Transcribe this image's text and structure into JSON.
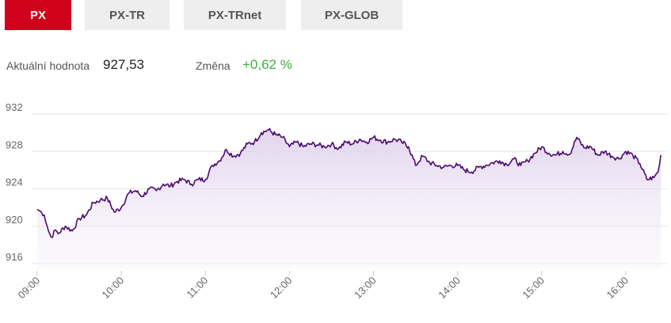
{
  "tabs": [
    {
      "label": "PX",
      "active": true
    },
    {
      "label": "PX-TR",
      "active": false
    },
    {
      "label": "PX-TRnet",
      "active": false
    },
    {
      "label": "PX-GLOB",
      "active": false
    }
  ],
  "stats": {
    "current_label": "Aktuální hodnota",
    "current_value": "927,53",
    "change_label": "Změna",
    "change_value": "+0,62 %"
  },
  "colors": {
    "accent": "#d0021b",
    "tab_bg": "#eeeeef",
    "line": "#4b0a6e",
    "area": "#e8ddf0",
    "positive": "#3fae3f",
    "grid": "#e6e6e6"
  },
  "chart_data": {
    "type": "area",
    "title": "",
    "xlabel": "",
    "ylabel": "",
    "ylim": [
      916,
      933
    ],
    "y_ticks": [
      916,
      920,
      924,
      928,
      932
    ],
    "y_tick_labels": [
      "916",
      "920",
      "924",
      "928",
      "932"
    ],
    "x_tick_labels": [
      "09:00",
      "10:00",
      "11:00",
      "12:00",
      "13:00",
      "14:00",
      "15:00",
      "16:00"
    ],
    "x_range": [
      "09:00",
      "16:25"
    ],
    "grid": true,
    "series": [
      {
        "x": [
          "09:00",
          "09:03",
          "09:05",
          "09:08",
          "09:10",
          "09:13",
          "09:15",
          "09:20",
          "09:25",
          "09:30",
          "09:35",
          "09:40",
          "09:45",
          "09:50",
          "09:55",
          "10:00",
          "10:05",
          "10:10",
          "10:15",
          "10:20",
          "10:25",
          "10:30",
          "10:35",
          "10:40",
          "10:45",
          "10:50",
          "10:55",
          "11:00",
          "11:05",
          "11:10",
          "11:15",
          "11:20",
          "11:25",
          "11:30",
          "11:35",
          "11:40",
          "11:45",
          "11:50",
          "11:55",
          "12:00",
          "12:05",
          "12:10",
          "12:15",
          "12:20",
          "12:25",
          "12:30",
          "12:35",
          "12:40",
          "12:45",
          "12:50",
          "12:55",
          "13:00",
          "13:05",
          "13:10",
          "13:15",
          "13:20",
          "13:25",
          "13:30",
          "13:35",
          "13:40",
          "13:45",
          "13:50",
          "13:55",
          "14:00",
          "14:05",
          "14:10",
          "14:15",
          "14:20",
          "14:25",
          "14:30",
          "14:35",
          "14:40",
          "14:45",
          "14:50",
          "14:55",
          "15:00",
          "15:05",
          "15:10",
          "15:15",
          "15:20",
          "15:25",
          "15:30",
          "15:35",
          "15:40",
          "15:45",
          "15:50",
          "15:55",
          "16:00",
          "16:05",
          "16:10",
          "16:15",
          "16:20",
          "16:23",
          "16:25"
        ],
        "values": [
          921.8,
          921.5,
          921.2,
          919.5,
          918.8,
          919.6,
          919.2,
          920.0,
          919.5,
          920.8,
          921.2,
          922.5,
          922.8,
          923.0,
          921.5,
          922.0,
          923.5,
          923.8,
          923.2,
          924.0,
          923.8,
          924.5,
          924.3,
          924.8,
          925.0,
          924.5,
          925.0,
          925.0,
          926.5,
          927.0,
          928.2,
          927.5,
          927.8,
          928.8,
          929.0,
          930.0,
          930.3,
          929.8,
          929.5,
          928.5,
          929.0,
          928.5,
          928.8,
          928.7,
          928.5,
          928.8,
          928.3,
          929.0,
          928.8,
          929.3,
          929.0,
          929.5,
          929.2,
          929.0,
          929.3,
          929.0,
          928.5,
          926.5,
          927.5,
          926.8,
          926.5,
          926.3,
          926.5,
          926.5,
          926.0,
          925.8,
          926.3,
          926.5,
          926.8,
          927.0,
          926.6,
          927.2,
          926.5,
          927.0,
          927.8,
          928.5,
          927.8,
          927.6,
          928.0,
          927.7,
          929.5,
          928.4,
          928.5,
          927.6,
          928.0,
          927.5,
          927.2,
          928.0,
          927.6,
          926.7,
          925.0,
          925.2,
          925.8,
          927.6
        ]
      }
    ]
  }
}
